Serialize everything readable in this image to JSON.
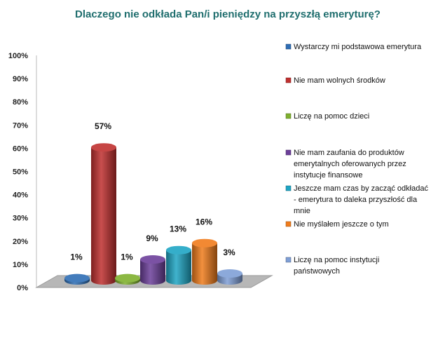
{
  "chart_data": {
    "type": "bar",
    "title": "Dlaczego nie odkłada Pan/i pieniędzy na przyszłą emeryturę?",
    "style": "3d-cylinder",
    "categories": [
      "Wystarczy mi podstawowa emerytura",
      "Nie mam wolnych środków",
      "Liczę na pomoc dzieci",
      "Nie mam zaufania do produktów emerytalnych oferowanych przez instytucje finansowe",
      "Jeszcze mam czas by zacząć odkładać - emerytura to daleka przyszłość dla mnie",
      "Nie myślałem jeszcze o tym",
      "Liczę na pomoc instytucji państwowych"
    ],
    "legend_lines": [
      [
        "Wystarczy mi podstawowa emerytura"
      ],
      [
        "Nie mam wolnych środków"
      ],
      [
        "Liczę na pomoc dzieci"
      ],
      [
        "Nie mam zaufania do produktów",
        "emerytalnych oferowanych przez",
        "instytucje finansowe"
      ],
      [
        "Jeszcze mam czas by zacząć odkładać",
        "- emerytura to daleka przyszłość dla",
        "mnie"
      ],
      [
        "Nie myślałem jeszcze o tym"
      ],
      [
        "Liczę na pomoc instytucji",
        "państwowych"
      ]
    ],
    "values": [
      1,
      57,
      1,
      9,
      13,
      16,
      3
    ],
    "data_labels": [
      "1%",
      "57%",
      "1%",
      "9%",
      "13%",
      "16%",
      "3%"
    ],
    "colors": [
      "#2e6db4",
      "#c0302f",
      "#7fb02e",
      "#6c3f9a",
      "#1ea5c4",
      "#f07c1c",
      "#7f9fd6"
    ],
    "ylim": [
      0,
      100
    ],
    "yticks": [
      "0%",
      "10%",
      "20%",
      "30%",
      "40%",
      "50%",
      "60%",
      "70%",
      "80%",
      "90%",
      "100%"
    ],
    "legend_position": "right",
    "grid": false,
    "title_color": "#1f6e6e"
  }
}
